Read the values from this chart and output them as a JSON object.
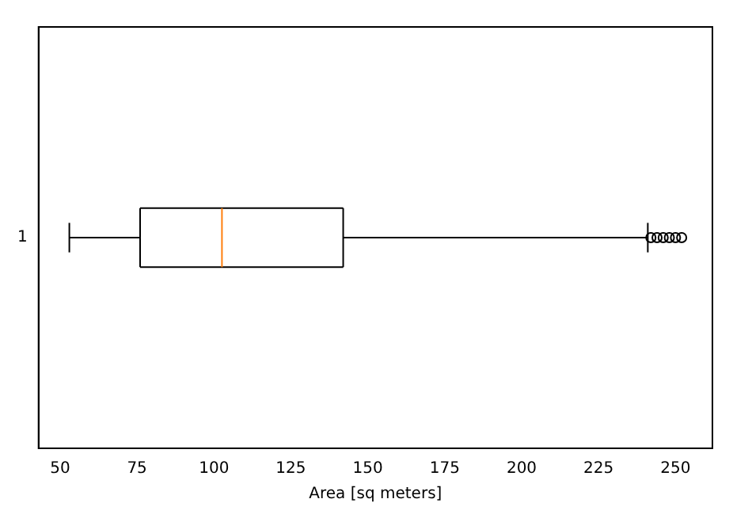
{
  "chart_data": {
    "type": "box",
    "orientation": "horizontal",
    "xlabel": "Area [sq meters]",
    "categories": [
      "1"
    ],
    "xlim": [
      43,
      262
    ],
    "xticks": [
      50,
      75,
      100,
      125,
      150,
      175,
      200,
      225,
      250
    ],
    "boxes": [
      {
        "low": 53,
        "q1": 76,
        "median": 102.6,
        "q3": 142,
        "high": 241,
        "outliers": [
          242,
          244,
          246,
          248,
          250,
          252
        ]
      }
    ]
  }
}
